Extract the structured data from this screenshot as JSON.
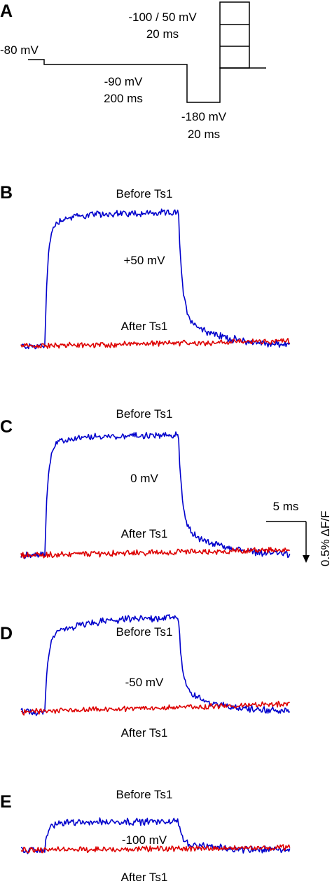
{
  "colors": {
    "before": "#0000cc",
    "after": "#dd0000",
    "protocol": "#000000"
  },
  "protocol": {
    "letter": "A",
    "steps": [
      {
        "level_mV": "-80 mV",
        "duration": ""
      },
      {
        "level_mV": "-90 mV",
        "duration": "200 ms"
      },
      {
        "level_mV": "-180 mV",
        "duration": "20 ms"
      },
      {
        "level_mV": "-100 / 50 mV",
        "duration": "20 ms"
      }
    ],
    "test_levels_mV": [
      -100,
      -50,
      0,
      50
    ]
  },
  "scale_bar": {
    "time": "5 ms",
    "amplitude": "0.5% ΔF/F"
  },
  "chart_data": [
    {
      "type": "line",
      "panel": "B",
      "voltage": "+50 mV",
      "onset_ms": 3.0,
      "offset_ms": 19.9,
      "pulse_amplitude_pct": 1.76,
      "after_drift_pct": 0.07,
      "series": [
        {
          "name": "Before Ts1"
        },
        {
          "name": "After Ts1"
        }
      ]
    },
    {
      "type": "line",
      "panel": "C",
      "voltage": "0 mV",
      "onset_ms": 3.0,
      "offset_ms": 19.9,
      "pulse_amplitude_pct": 1.58,
      "after_drift_pct": 0.07,
      "series": [
        {
          "name": "Before Ts1"
        },
        {
          "name": "After Ts1"
        }
      ]
    },
    {
      "type": "line",
      "panel": "D",
      "voltage": "-50 mV",
      "onset_ms": 3.0,
      "offset_ms": 19.9,
      "pulse_amplitude_pct": 1.26,
      "after_drift_pct": 0.11,
      "series": [
        {
          "name": "Before Ts1"
        },
        {
          "name": "After Ts1"
        }
      ]
    },
    {
      "type": "line",
      "panel": "E",
      "voltage": "-100 mV",
      "onset_ms": 3.0,
      "offset_ms": 19.9,
      "pulse_amplitude_pct": 0.38,
      "after_drift_pct": 0.04,
      "series": [
        {
          "name": "Before Ts1"
        },
        {
          "name": "After Ts1"
        }
      ]
    }
  ]
}
